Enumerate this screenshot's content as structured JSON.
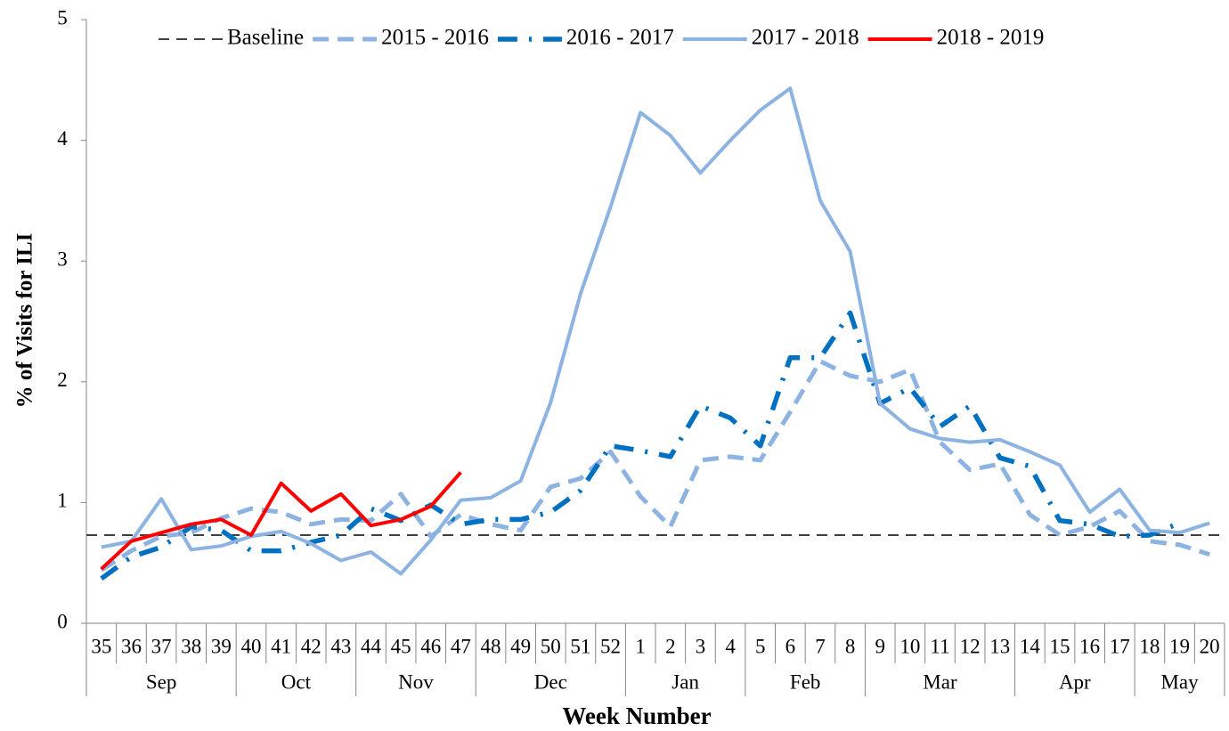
{
  "chart_data": {
    "type": "line",
    "y_label": "% of Visits for ILI",
    "x_label": "Week Number",
    "categories": [
      "35",
      "36",
      "37",
      "38",
      "39",
      "40",
      "41",
      "42",
      "43",
      "44",
      "45",
      "46",
      "47",
      "48",
      "49",
      "50",
      "51",
      "52",
      "1",
      "2",
      "3",
      "4",
      "5",
      "6",
      "7",
      "8",
      "9",
      "10",
      "11",
      "12",
      "13",
      "14",
      "15",
      "16",
      "17",
      "18",
      "19",
      "20"
    ],
    "x_groups": [
      "Sep",
      null,
      null,
      null,
      null,
      "Oct",
      null,
      null,
      null,
      "Nov",
      null,
      null,
      null,
      "Dec",
      null,
      null,
      null,
      null,
      "Jan",
      null,
      null,
      null,
      "Feb",
      null,
      null,
      null,
      "Mar",
      null,
      null,
      null,
      null,
      "Apr",
      null,
      null,
      null,
      "May",
      null,
      null
    ],
    "baseline": {
      "name": "Baseline",
      "value": 0.73,
      "color": "#404040"
    },
    "series": [
      {
        "name": "2015 - 2016",
        "color": "#8DB3E2",
        "style": "dashed",
        "values": [
          0.44,
          0.6,
          0.72,
          0.75,
          0.87,
          0.95,
          0.92,
          0.82,
          0.86,
          0.85,
          1.07,
          0.72,
          0.9,
          0.82,
          0.77,
          1.13,
          1.2,
          1.42,
          1.05,
          0.8,
          1.35,
          1.38,
          1.35,
          1.75,
          2.17,
          2.05,
          2.0,
          2.1,
          1.5,
          1.27,
          1.32,
          0.9,
          0.73,
          0.8,
          0.93,
          0.68,
          0.65,
          0.57
        ]
      },
      {
        "name": "2016 - 2017",
        "color": "#0070C0",
        "style": "dashdot",
        "values": [
          0.37,
          0.55,
          0.63,
          0.8,
          0.77,
          0.6,
          0.6,
          0.67,
          0.73,
          0.95,
          0.85,
          0.98,
          0.82,
          0.86,
          0.86,
          0.92,
          1.1,
          1.47,
          1.43,
          1.38,
          1.8,
          1.7,
          1.47,
          2.2,
          2.2,
          2.57,
          1.82,
          1.95,
          1.63,
          1.8,
          1.37,
          1.3,
          0.85,
          0.82,
          0.72,
          0.73,
          0.83,
          null
        ]
      },
      {
        "name": "2017 - 2018",
        "color": "#8DB3E2",
        "style": "solid",
        "values": [
          0.63,
          0.68,
          1.03,
          0.61,
          0.64,
          0.72,
          0.76,
          0.66,
          0.52,
          0.59,
          0.41,
          0.69,
          1.02,
          1.04,
          1.18,
          1.83,
          2.73,
          3.45,
          4.23,
          4.04,
          3.73,
          4.0,
          4.25,
          4.43,
          3.5,
          3.08,
          1.82,
          1.61,
          1.53,
          1.5,
          1.52,
          1.42,
          1.31,
          0.92,
          1.11,
          0.77,
          0.75,
          0.83
        ]
      },
      {
        "name": "2018 - 2019",
        "color": "#FF0000",
        "style": "solid",
        "values": [
          0.45,
          0.68,
          0.75,
          0.82,
          0.86,
          0.73,
          1.16,
          0.93,
          1.07,
          0.81,
          0.86,
          0.97,
          1.25,
          null,
          null,
          null,
          null,
          null,
          null,
          null,
          null,
          null,
          null,
          null,
          null,
          null,
          null,
          null,
          null,
          null,
          null,
          null,
          null,
          null,
          null,
          null,
          null,
          null
        ]
      }
    ],
    "ylim": [
      0,
      5
    ],
    "yticks": [
      0,
      1,
      2,
      3,
      4,
      5
    ],
    "grid": false,
    "legend": "top"
  }
}
